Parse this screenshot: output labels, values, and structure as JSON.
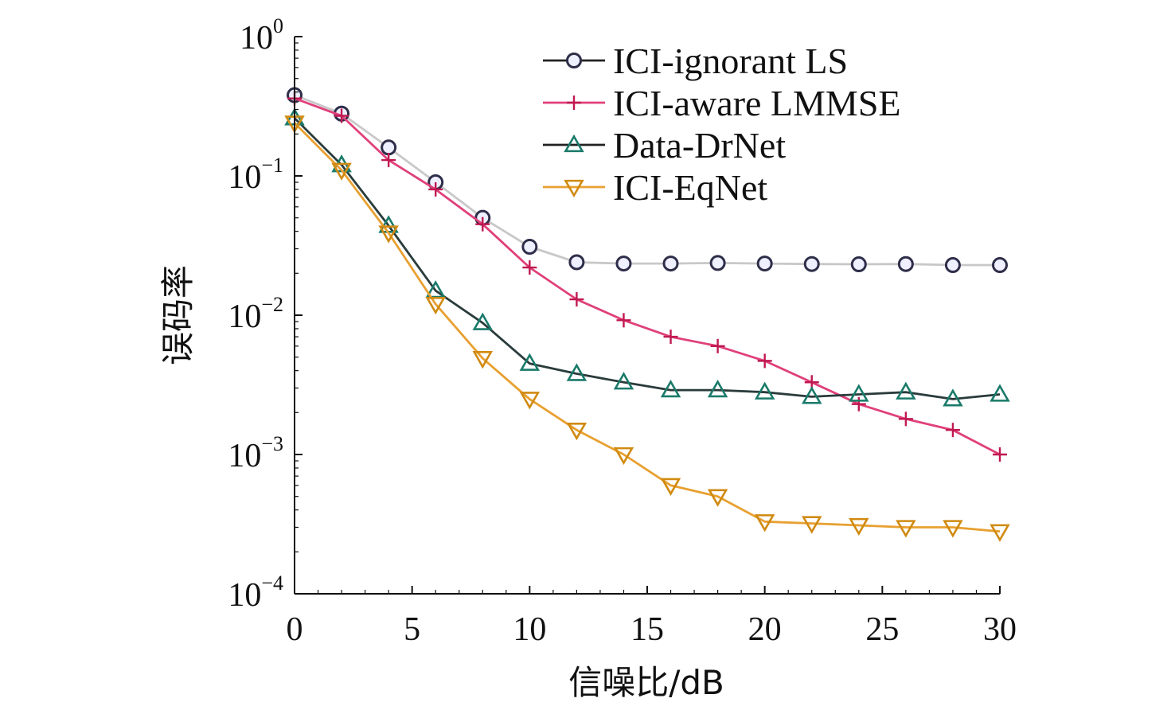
{
  "chart_data": {
    "type": "line",
    "xlabel": "信噪比/dB",
    "ylabel": "误码率",
    "xlim": [
      0,
      30
    ],
    "ylim": [
      0.0001,
      1
    ],
    "yscale": "log",
    "grid": false,
    "legend_position": "top-right",
    "x_ticks": [
      0,
      5,
      10,
      15,
      20,
      25,
      30
    ],
    "y_ticks": [
      {
        "base": "10",
        "exp": "0",
        "value": 1
      },
      {
        "base": "10",
        "exp": "−1",
        "value": 0.1
      },
      {
        "base": "10",
        "exp": "−2",
        "value": 0.01
      },
      {
        "base": "10",
        "exp": "−3",
        "value": 0.001
      },
      {
        "base": "10",
        "exp": "−4",
        "value": 0.0001
      }
    ],
    "x": [
      0,
      2,
      4,
      6,
      8,
      10,
      12,
      14,
      16,
      18,
      20,
      22,
      24,
      26,
      28,
      30
    ],
    "series": [
      {
        "name": "ICI-ignorant LS",
        "marker": "circle",
        "line_color": "#c8c8c8",
        "marker_color": "#2e2e4a",
        "marker_fill": "#eef0ff",
        "legend_line_color": "#222222",
        "values": [
          0.38,
          0.28,
          0.16,
          0.09,
          0.05,
          0.031,
          0.024,
          0.0235,
          0.0235,
          0.0237,
          0.0235,
          0.0233,
          0.0232,
          0.0233,
          0.0229,
          0.0229
        ]
      },
      {
        "name": "ICI-aware LMMSE",
        "marker": "plus",
        "line_color": "#e0407a",
        "marker_color": "#c01850",
        "legend_line_color": "#e0407a",
        "values": [
          0.36,
          0.27,
          0.13,
          0.08,
          0.045,
          0.022,
          0.013,
          0.0092,
          0.007,
          0.006,
          0.0047,
          0.0033,
          0.0023,
          0.0018,
          0.0015,
          0.001
        ]
      },
      {
        "name": "Data-DrNet",
        "marker": "triangle-up",
        "line_color": "#2a3b3b",
        "marker_color": "#1a7a6a",
        "legend_line_color": "#222222",
        "values": [
          0.26,
          0.12,
          0.044,
          0.015,
          0.0088,
          0.0045,
          0.0038,
          0.0033,
          0.0029,
          0.0029,
          0.0028,
          0.0026,
          0.0027,
          0.0028,
          0.0025,
          0.0027
        ]
      },
      {
        "name": "ICI-EqNet",
        "marker": "triangle-down",
        "line_color": "#e8a030",
        "marker_color": "#d08a10",
        "legend_line_color": "#e8a030",
        "values": [
          0.24,
          0.11,
          0.039,
          0.012,
          0.0049,
          0.0025,
          0.0015,
          0.001,
          0.0006,
          0.0005,
          0.00033,
          0.00032,
          0.00031,
          0.0003,
          0.0003,
          0.00028
        ]
      }
    ]
  }
}
